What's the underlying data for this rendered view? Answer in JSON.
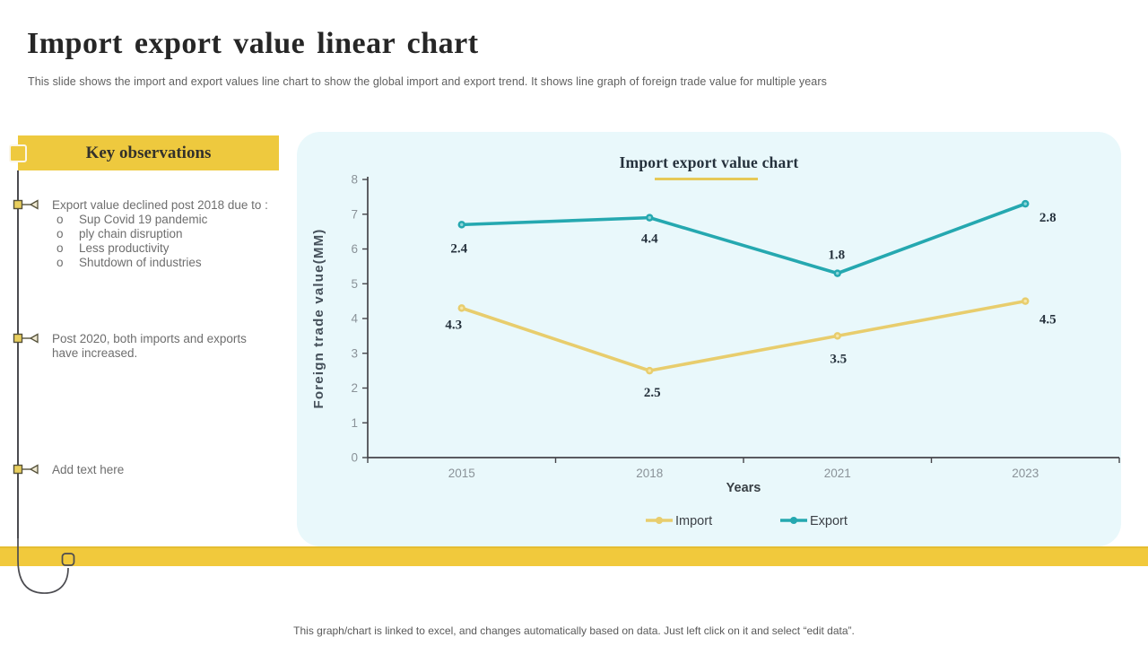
{
  "header": {
    "title": "Import export value linear chart",
    "subtitle": "This slide shows the import and export values line chart to show the global import and export trend. It shows line graph of foreign trade value for multiple years"
  },
  "observations": {
    "header": "Key observations",
    "items": [
      {
        "text": "Export value declined post 2018 due to :",
        "sub_points": [
          "Sup Covid  19 pandemic",
          "ply chain disruption",
          "Less  productivity",
          "Shutdown of industries"
        ]
      },
      {
        "text": "Post 2020, both imports and exports have increased."
      },
      {
        "text": "Add text here"
      }
    ]
  },
  "chart": {
    "title": "Import export value chart"
  },
  "chart_data": {
    "type": "line",
    "title": "Import export value chart",
    "categories": [
      "2015",
      "2018",
      "2021",
      "2023"
    ],
    "series": [
      {
        "name": "Import",
        "color": "#e8cd6d",
        "dot_center": "#f6e6a8",
        "values": [
          4.3,
          2.5,
          3.5,
          4.5
        ],
        "plotted_values": [
          4.3,
          2.5,
          3.5,
          4.5
        ]
      },
      {
        "name": "Export",
        "color": "#25a8b0",
        "dot_center": "#8fd6d9",
        "values": [
          2.4,
          4.4,
          1.8,
          2.8
        ],
        "plotted_values": [
          6.7,
          6.9,
          5.3,
          7.3
        ]
      }
    ],
    "xlabel": "Years",
    "ylabel": "Foreign trade value(MM)",
    "ylim": [
      0,
      8
    ],
    "y_ticks": [
      0,
      1,
      2,
      3,
      4,
      5,
      6,
      7,
      8
    ],
    "grid": false,
    "legend_position": "bottom"
  },
  "footer": {
    "note": "This graph/chart is linked to excel,  and changes automatically based on data. Just left click on it and select “edit data”."
  },
  "colors": {
    "accent_gold": "#eec93e",
    "panel_bg": "#e9f8fb",
    "axis": "#45454a",
    "tick_text": "#8a9298",
    "label_text": "#25313c"
  }
}
